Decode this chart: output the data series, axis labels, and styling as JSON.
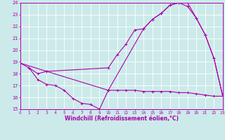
{
  "bg_color": "#cceaea",
  "line_color": "#aa00aa",
  "xlabel": "Windchill (Refroidissement éolien,°C)",
  "xlim": [
    0,
    23
  ],
  "ylim": [
    15,
    24
  ],
  "yticks": [
    15,
    16,
    17,
    18,
    19,
    20,
    21,
    22,
    23,
    24
  ],
  "xticks": [
    0,
    1,
    2,
    3,
    4,
    5,
    6,
    7,
    8,
    9,
    10,
    11,
    12,
    13,
    14,
    15,
    16,
    17,
    18,
    19,
    20,
    21,
    22,
    23
  ],
  "line1_x": [
    0,
    1,
    2,
    3,
    10,
    11,
    12,
    13,
    14,
    15,
    16,
    17,
    18,
    19,
    20,
    21,
    22,
    23
  ],
  "line1_y": [
    18.9,
    18.5,
    18.0,
    18.2,
    18.5,
    19.6,
    20.5,
    21.7,
    21.8,
    22.6,
    23.1,
    23.8,
    24.0,
    24.0,
    22.7,
    21.3,
    19.3,
    16.1
  ],
  "line2_x": [
    1,
    2,
    3,
    4,
    5,
    6,
    7,
    8,
    9,
    10,
    11,
    12,
    13,
    14,
    15,
    16,
    17,
    18,
    19,
    20,
    21,
    22,
    23
  ],
  "line2_y": [
    18.5,
    17.5,
    17.1,
    17.0,
    16.6,
    15.9,
    15.5,
    15.4,
    15.0,
    16.6,
    16.6,
    16.6,
    16.6,
    16.5,
    16.5,
    16.5,
    16.5,
    16.4,
    16.4,
    16.3,
    16.2,
    16.1,
    16.1
  ],
  "line3_x": [
    0,
    3,
    10,
    14,
    15,
    16,
    17,
    18,
    19,
    20,
    21,
    22,
    23
  ],
  "line3_y": [
    18.9,
    18.2,
    16.6,
    21.8,
    22.6,
    23.1,
    23.8,
    24.0,
    23.7,
    22.7,
    21.3,
    19.3,
    16.1
  ]
}
